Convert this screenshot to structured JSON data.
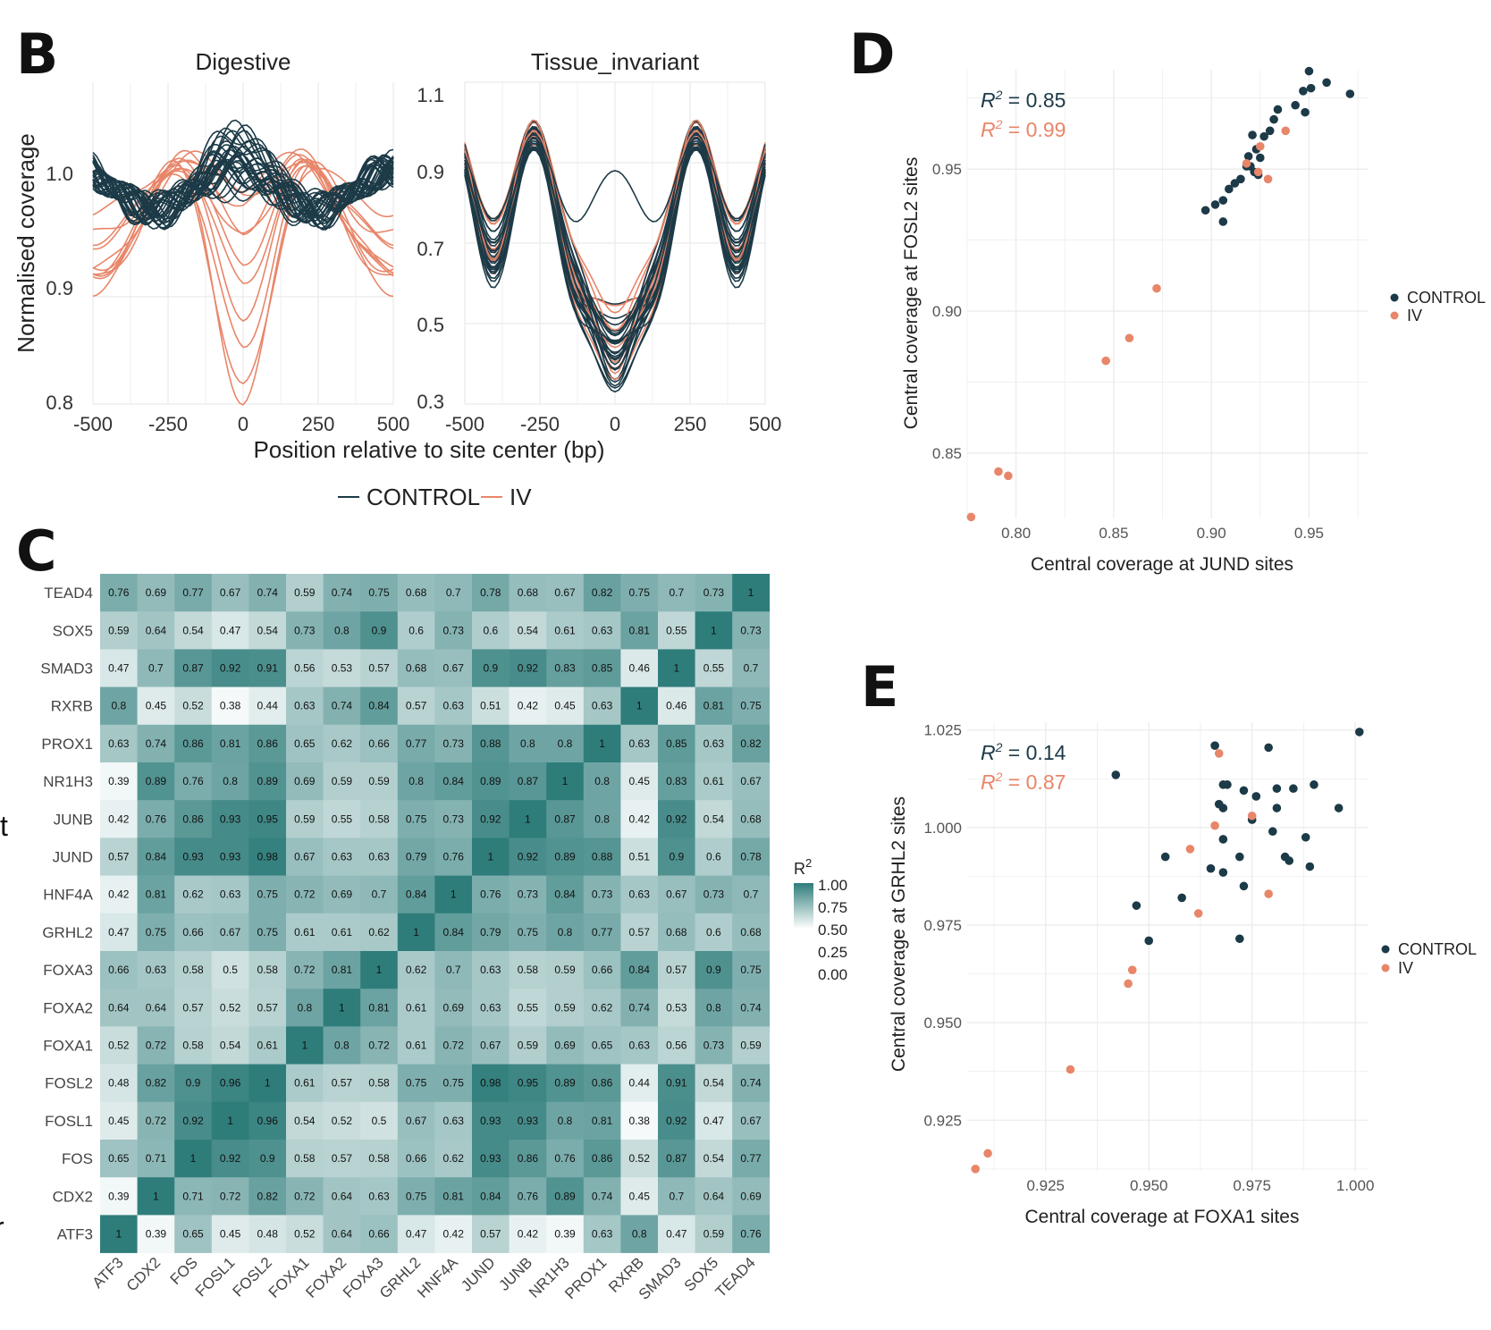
{
  "panels": {
    "B": "B",
    "C": "C",
    "D": "D",
    "E": "E"
  },
  "colors": {
    "control": "#1c3a47",
    "iv": "#e8866a",
    "heat_low": "#ffffff",
    "heat_high": "#2e7d7b",
    "grid": "#ebebeb"
  },
  "panel_b": {
    "chart_data": [
      {
        "type": "line",
        "title": "Digestive",
        "ylabel": "Normalised coverage",
        "xlim": [
          -500,
          500
        ],
        "ylim": [
          0.8,
          1.1
        ],
        "x_ticks": [
          "-500",
          "-250",
          "0",
          "250",
          "500"
        ],
        "y_ticks": [
          "0.8",
          "0.9",
          "1.0"
        ],
        "series": [
          {
            "name": "CONTROL",
            "profile": "flat",
            "min": 0.98,
            "max": 1.08
          },
          {
            "name": "IV",
            "profile": "dip",
            "min": 0.81,
            "max": 1.04
          }
        ]
      },
      {
        "type": "line",
        "title": "Tissue_invariant",
        "xlim": [
          -500,
          500
        ],
        "ylim": [
          0.3,
          1.1
        ],
        "x_ticks": [
          "-500",
          "-250",
          "0",
          "250",
          "500"
        ],
        "y_ticks": [
          "0.3",
          "0.5",
          "0.7",
          "0.9",
          "1.1"
        ],
        "series": [
          {
            "name": "CONTROL",
            "profile": "oscillating",
            "min": 0.32,
            "max": 1.07
          },
          {
            "name": "IV",
            "profile": "oscillating",
            "min": 0.38,
            "max": 1.0
          }
        ]
      }
    ],
    "xlabel": "Position relative to site center (bp)",
    "legend": [
      {
        "label": "CONTROL",
        "color": "#1c3a47"
      },
      {
        "label": "IV",
        "color": "#e8866a"
      }
    ]
  },
  "panel_c": {
    "chart_data": {
      "type": "heatmap",
      "x_labels": [
        "ATF3",
        "CDX2",
        "FOS",
        "FOSL1",
        "FOSL2",
        "FOXA1",
        "FOXA2",
        "FOXA3",
        "GRHL2",
        "HNF4A",
        "JUND",
        "JUNB",
        "NR1H3",
        "PROX1",
        "RXRB",
        "SMAD3",
        "SOX5",
        "TEAD4"
      ],
      "y_labels": [
        "TEAD4",
        "SOX5",
        "SMAD3",
        "RXRB",
        "PROX1",
        "NR1H3",
        "JUNB",
        "JUND",
        "HNF4A",
        "GRHL2",
        "FOXA3",
        "FOXA2",
        "FOXA1",
        "FOSL2",
        "FOSL1",
        "FOS",
        "CDX2",
        "ATF3"
      ],
      "values": [
        [
          "0.76",
          "0.69",
          "0.77",
          "0.67",
          "0.74",
          "0.59",
          "0.74",
          "0.75",
          "0.68",
          "0.7",
          "0.78",
          "0.68",
          "0.67",
          "0.82",
          "0.75",
          "0.7",
          "0.73",
          "1"
        ],
        [
          "0.59",
          "0.64",
          "0.54",
          "0.47",
          "0.54",
          "0.73",
          "0.8",
          "0.9",
          "0.6",
          "0.73",
          "0.6",
          "0.54",
          "0.61",
          "0.63",
          "0.81",
          "0.55",
          "1",
          "0.73"
        ],
        [
          "0.47",
          "0.7",
          "0.87",
          "0.92",
          "0.91",
          "0.56",
          "0.53",
          "0.57",
          "0.68",
          "0.67",
          "0.9",
          "0.92",
          "0.83",
          "0.85",
          "0.46",
          "1",
          "0.55",
          "0.7"
        ],
        [
          "0.8",
          "0.45",
          "0.52",
          "0.38",
          "0.44",
          "0.63",
          "0.74",
          "0.84",
          "0.57",
          "0.63",
          "0.51",
          "0.42",
          "0.45",
          "0.63",
          "1",
          "0.46",
          "0.81",
          "0.75"
        ],
        [
          "0.63",
          "0.74",
          "0.86",
          "0.81",
          "0.86",
          "0.65",
          "0.62",
          "0.66",
          "0.77",
          "0.73",
          "0.88",
          "0.8",
          "0.8",
          "1",
          "0.63",
          "0.85",
          "0.63",
          "0.82"
        ],
        [
          "0.39",
          "0.89",
          "0.76",
          "0.8",
          "0.89",
          "0.69",
          "0.59",
          "0.59",
          "0.8",
          "0.84",
          "0.89",
          "0.87",
          "1",
          "0.8",
          "0.45",
          "0.83",
          "0.61",
          "0.67"
        ],
        [
          "0.42",
          "0.76",
          "0.86",
          "0.93",
          "0.95",
          "0.59",
          "0.55",
          "0.58",
          "0.75",
          "0.73",
          "0.92",
          "1",
          "0.87",
          "0.8",
          "0.42",
          "0.92",
          "0.54",
          "0.68"
        ],
        [
          "0.57",
          "0.84",
          "0.93",
          "0.93",
          "0.98",
          "0.67",
          "0.63",
          "0.63",
          "0.79",
          "0.76",
          "1",
          "0.92",
          "0.89",
          "0.88",
          "0.51",
          "0.9",
          "0.6",
          "0.78"
        ],
        [
          "0.42",
          "0.81",
          "0.62",
          "0.63",
          "0.75",
          "0.72",
          "0.69",
          "0.7",
          "0.84",
          "1",
          "0.76",
          "0.73",
          "0.84",
          "0.73",
          "0.63",
          "0.67",
          "0.73",
          "0.7"
        ],
        [
          "0.47",
          "0.75",
          "0.66",
          "0.67",
          "0.75",
          "0.61",
          "0.61",
          "0.62",
          "1",
          "0.84",
          "0.79",
          "0.75",
          "0.8",
          "0.77",
          "0.57",
          "0.68",
          "0.6",
          "0.68"
        ],
        [
          "0.66",
          "0.63",
          "0.58",
          "0.5",
          "0.58",
          "0.72",
          "0.81",
          "1",
          "0.62",
          "0.7",
          "0.63",
          "0.58",
          "0.59",
          "0.66",
          "0.84",
          "0.57",
          "0.9",
          "0.75"
        ],
        [
          "0.64",
          "0.64",
          "0.57",
          "0.52",
          "0.57",
          "0.8",
          "1",
          "0.81",
          "0.61",
          "0.69",
          "0.63",
          "0.55",
          "0.59",
          "0.62",
          "0.74",
          "0.53",
          "0.8",
          "0.74"
        ],
        [
          "0.52",
          "0.72",
          "0.58",
          "0.54",
          "0.61",
          "1",
          "0.8",
          "0.72",
          "0.61",
          "0.72",
          "0.67",
          "0.59",
          "0.69",
          "0.65",
          "0.63",
          "0.56",
          "0.73",
          "0.59"
        ],
        [
          "0.48",
          "0.82",
          "0.9",
          "0.96",
          "1",
          "0.61",
          "0.57",
          "0.58",
          "0.75",
          "0.75",
          "0.98",
          "0.95",
          "0.89",
          "0.86",
          "0.44",
          "0.91",
          "0.54",
          "0.74"
        ],
        [
          "0.45",
          "0.72",
          "0.92",
          "1",
          "0.96",
          "0.54",
          "0.52",
          "0.5",
          "0.67",
          "0.63",
          "0.93",
          "0.93",
          "0.8",
          "0.81",
          "0.38",
          "0.92",
          "0.47",
          "0.67"
        ],
        [
          "0.65",
          "0.71",
          "1",
          "0.92",
          "0.9",
          "0.58",
          "0.57",
          "0.58",
          "0.66",
          "0.62",
          "0.93",
          "0.86",
          "0.76",
          "0.86",
          "0.52",
          "0.87",
          "0.54",
          "0.77"
        ],
        [
          "0.39",
          "1",
          "0.71",
          "0.72",
          "0.82",
          "0.72",
          "0.64",
          "0.63",
          "0.75",
          "0.81",
          "0.84",
          "0.76",
          "0.89",
          "0.74",
          "0.45",
          "0.7",
          "0.64",
          "0.69"
        ],
        [
          "1",
          "0.39",
          "0.65",
          "0.45",
          "0.48",
          "0.52",
          "0.64",
          "0.66",
          "0.47",
          "0.42",
          "0.57",
          "0.42",
          "0.39",
          "0.63",
          "0.8",
          "0.47",
          "0.59",
          "0.76"
        ]
      ],
      "legend_title": "R",
      "legend_title_sup": "2",
      "legend_ticks": [
        "1.00",
        "0.75",
        "0.50",
        "0.25",
        "0.00"
      ]
    }
  },
  "panel_d": {
    "chart_data": {
      "type": "scatter",
      "xlabel": "Central coverage at JUND sites",
      "ylabel": "Central coverage at FOSL2 sites",
      "xlim": [
        0.775,
        0.98
      ],
      "ylim": [
        0.827,
        0.985
      ],
      "x_ticks": [
        "0.80",
        "0.85",
        "0.90",
        "0.95"
      ],
      "y_ticks": [
        "0.85",
        "0.90",
        "0.95"
      ],
      "r2": [
        {
          "label": "R",
          "sup": "2",
          "value": " = 0.85"
        },
        {
          "label": "R",
          "sup": "2",
          "value": " = 0.99"
        }
      ],
      "series": [
        {
          "name": "CONTROL",
          "points": [
            [
              0.95,
              0.9845
            ],
            [
              0.959,
              0.9805
            ],
            [
              0.971,
              0.9765
            ],
            [
              0.951,
              0.9785
            ],
            [
              0.947,
              0.9775
            ],
            [
              0.943,
              0.9725
            ],
            [
              0.948,
              0.97
            ],
            [
              0.934,
              0.971
            ],
            [
              0.932,
              0.9675
            ],
            [
              0.927,
              0.9615
            ],
            [
              0.93,
              0.9635
            ],
            [
              0.921,
              0.962
            ],
            [
              0.923,
              0.957
            ],
            [
              0.925,
              0.954
            ],
            [
              0.919,
              0.9545
            ],
            [
              0.92,
              0.951
            ],
            [
              0.922,
              0.949
            ],
            [
              0.924,
              0.948
            ],
            [
              0.918,
              0.951
            ],
            [
              0.915,
              0.9465
            ],
            [
              0.912,
              0.945
            ],
            [
              0.909,
              0.943
            ],
            [
              0.902,
              0.9375
            ],
            [
              0.906,
              0.939
            ],
            [
              0.897,
              0.9355
            ],
            [
              0.906,
              0.9315
            ]
          ]
        },
        {
          "name": "IV",
          "points": [
            [
              0.938,
              0.9635
            ],
            [
              0.925,
              0.958
            ],
            [
              0.918,
              0.952
            ],
            [
              0.924,
              0.949
            ],
            [
              0.929,
              0.9465
            ],
            [
              0.872,
              0.908
            ],
            [
              0.858,
              0.8905
            ],
            [
              0.846,
              0.8825
            ],
            [
              0.791,
              0.8435
            ],
            [
              0.796,
              0.842
            ],
            [
              0.777,
              0.8275
            ]
          ]
        }
      ],
      "legend": [
        {
          "label": "CONTROL",
          "color": "#1c3a47"
        },
        {
          "label": "IV",
          "color": "#e8866a"
        }
      ]
    }
  },
  "panel_e": {
    "chart_data": {
      "type": "scatter",
      "xlabel": "Central coverage at FOXA1 sites",
      "ylabel": "Central coverage at GRHL2 sites",
      "xlim": [
        0.906,
        1.003
      ],
      "ylim": [
        0.912,
        1.027
      ],
      "x_ticks": [
        "0.925",
        "0.950",
        "0.975",
        "1.000"
      ],
      "y_ticks": [
        "0.925",
        "0.950",
        "0.975",
        "1.000",
        "1.025"
      ],
      "r2": [
        {
          "label": "R",
          "sup": "2",
          "value": " = 0.14"
        },
        {
          "label": "R",
          "sup": "2",
          "value": " = 0.87"
        }
      ],
      "series": [
        {
          "name": "CONTROL",
          "points": [
            [
              1.001,
              1.0245
            ],
            [
              0.966,
              1.021
            ],
            [
              0.979,
              1.0205
            ],
            [
              0.942,
              1.0135
            ],
            [
              0.968,
              1.011
            ],
            [
              0.969,
              1.011
            ],
            [
              0.973,
              1.0095
            ],
            [
              0.976,
              1.008
            ],
            [
              0.981,
              1.01
            ],
            [
              0.985,
              1.01
            ],
            [
              0.99,
              1.011
            ],
            [
              0.967,
              1.006
            ],
            [
              0.968,
              1.005
            ],
            [
              0.981,
              1.005
            ],
            [
              0.996,
              1.005
            ],
            [
              0.975,
              1.002
            ],
            [
              0.98,
              0.999
            ],
            [
              0.988,
              0.9975
            ],
            [
              0.968,
              0.997
            ],
            [
              0.954,
              0.9925
            ],
            [
              0.972,
              0.9925
            ],
            [
              0.983,
              0.9925
            ],
            [
              0.984,
              0.9915
            ],
            [
              0.965,
              0.9895
            ],
            [
              0.968,
              0.9885
            ],
            [
              0.989,
              0.99
            ],
            [
              0.973,
              0.985
            ],
            [
              0.958,
              0.982
            ],
            [
              0.947,
              0.98
            ],
            [
              0.972,
              0.9715
            ],
            [
              0.95,
              0.971
            ]
          ]
        },
        {
          "name": "IV",
          "points": [
            [
              0.967,
              1.019
            ],
            [
              0.975,
              1.003
            ],
            [
              0.966,
              1.0005
            ],
            [
              0.96,
              0.9945
            ],
            [
              0.979,
              0.983
            ],
            [
              0.962,
              0.978
            ],
            [
              0.946,
              0.9635
            ],
            [
              0.945,
              0.96
            ],
            [
              0.931,
              0.938
            ],
            [
              0.911,
              0.9165
            ],
            [
              0.908,
              0.9125
            ]
          ]
        }
      ],
      "legend": [
        {
          "label": "CONTROL",
          "color": "#1c3a47"
        },
        {
          "label": "IV",
          "color": "#e8866a"
        }
      ]
    }
  },
  "stray_glyphs": [
    "t",
    "r"
  ]
}
